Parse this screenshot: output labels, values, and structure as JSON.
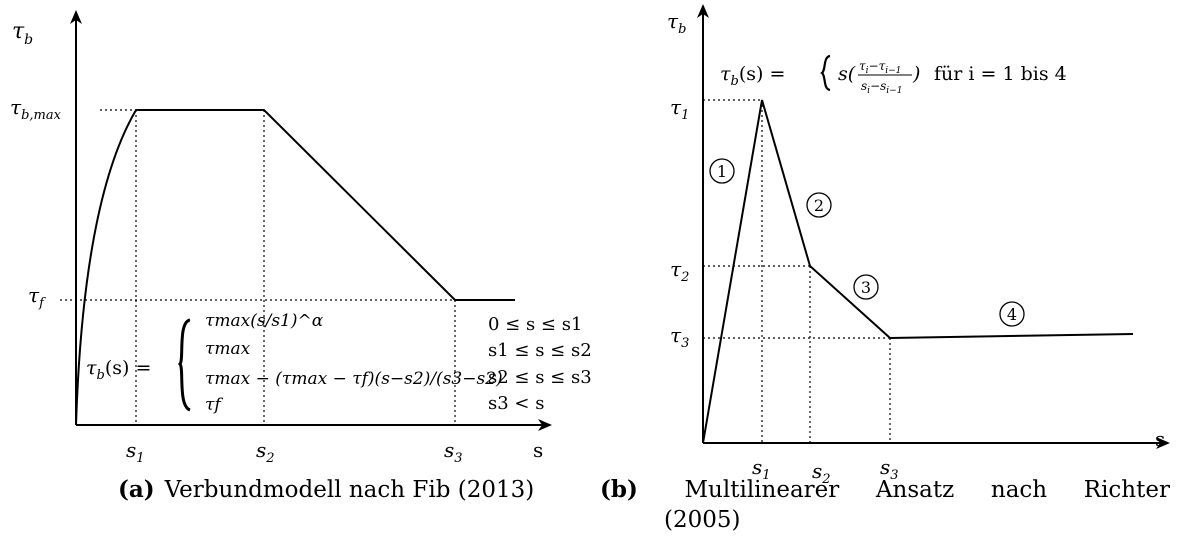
{
  "panel_a": {
    "y_axis_label": "τ",
    "y_axis_sub": "b",
    "x_axis_label": "s",
    "ticks_y": [
      {
        "base": "τ",
        "sub": "b,max"
      },
      {
        "base": "τ",
        "sub": "f"
      }
    ],
    "ticks_x": [
      {
        "base": "s",
        "sub": "1"
      },
      {
        "base": "s",
        "sub": "2"
      },
      {
        "base": "s",
        "sub": "3"
      }
    ],
    "formula_lhs": "τ",
    "formula_lhs_sub": "b",
    "formula_lhs_arg": "(s) =",
    "formula_cases": [
      {
        "expr": "τmax(s/s1)^α",
        "cond": "0 ≤ s ≤ s1"
      },
      {
        "expr": "τmax",
        "cond": "s1 ≤ s ≤ s2"
      },
      {
        "expr": "τmax − (τmax − τf)(s−s2)/(s3−s2)",
        "cond": "s2 ≤ s ≤ s3"
      },
      {
        "expr": "τf",
        "cond": "s3 < s"
      }
    ],
    "caption_label": "(a)",
    "caption_text": "Verbundmodell nach Fib (2013)"
  },
  "panel_b": {
    "y_axis_label": "τ",
    "y_axis_sub": "b",
    "x_axis_label": "s",
    "ticks_y": [
      {
        "base": "τ",
        "sub": "1"
      },
      {
        "base": "τ",
        "sub": "2"
      },
      {
        "base": "τ",
        "sub": "3"
      }
    ],
    "ticks_x": [
      {
        "base": "s",
        "sub": "1"
      },
      {
        "base": "s",
        "sub": "2"
      },
      {
        "base": "s",
        "sub": "3"
      }
    ],
    "segment_markers": [
      "1",
      "2",
      "3",
      "4"
    ],
    "formula_text": "für i = 1 bis 4",
    "caption_label": "(b)",
    "caption_words": [
      "Multilinearer",
      "Ansatz",
      "nach",
      "Richter"
    ],
    "caption_cont": "(2005)"
  }
}
